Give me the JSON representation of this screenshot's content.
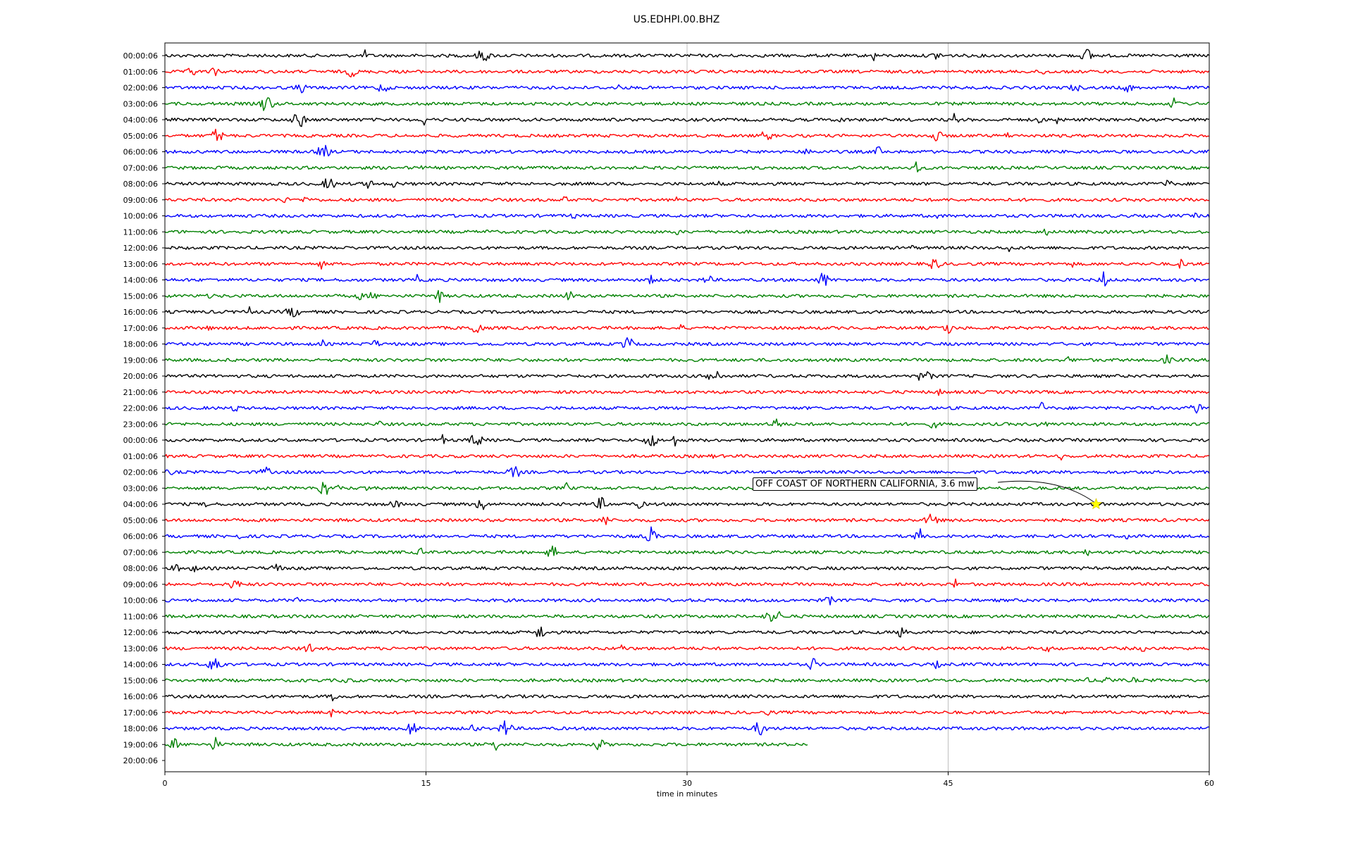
{
  "chart_data": {
    "type": "line",
    "title": "US.EDHPI.00.BHZ",
    "xlabel": "time in minutes",
    "xlim": [
      0,
      60
    ],
    "xticks": [
      "0",
      "15",
      "30",
      "45",
      "60"
    ],
    "grid": "vertical",
    "series_colors": [
      "#000000",
      "#ff0000",
      "#0000ff",
      "#008000"
    ],
    "row_labels": [
      "00:00:06",
      "01:00:06",
      "02:00:06",
      "03:00:06",
      "04:00:06",
      "05:00:06",
      "06:00:06",
      "07:00:06",
      "08:00:06",
      "09:00:06",
      "10:00:06",
      "11:00:06",
      "12:00:06",
      "13:00:06",
      "14:00:06",
      "15:00:06",
      "16:00:06",
      "17:00:06",
      "18:00:06",
      "19:00:06",
      "20:00:06",
      "21:00:06",
      "22:00:06",
      "23:00:06",
      "00:00:06",
      "01:00:06",
      "02:00:06",
      "03:00:06",
      "04:00:06",
      "05:00:06",
      "06:00:06",
      "07:00:06",
      "08:00:06",
      "09:00:06",
      "10:00:06",
      "11:00:06",
      "12:00:06",
      "13:00:06",
      "14:00:06",
      "15:00:06",
      "16:00:06",
      "17:00:06",
      "18:00:06",
      "19:00:06",
      "20:00:06"
    ],
    "last_trace_end_minute": 37,
    "event": {
      "label": "OFF COAST OF NORTHERN CALIFORNIA, 3.6 mw",
      "row": 28,
      "minute": 53.5,
      "marker_color": "#ffff00"
    }
  }
}
